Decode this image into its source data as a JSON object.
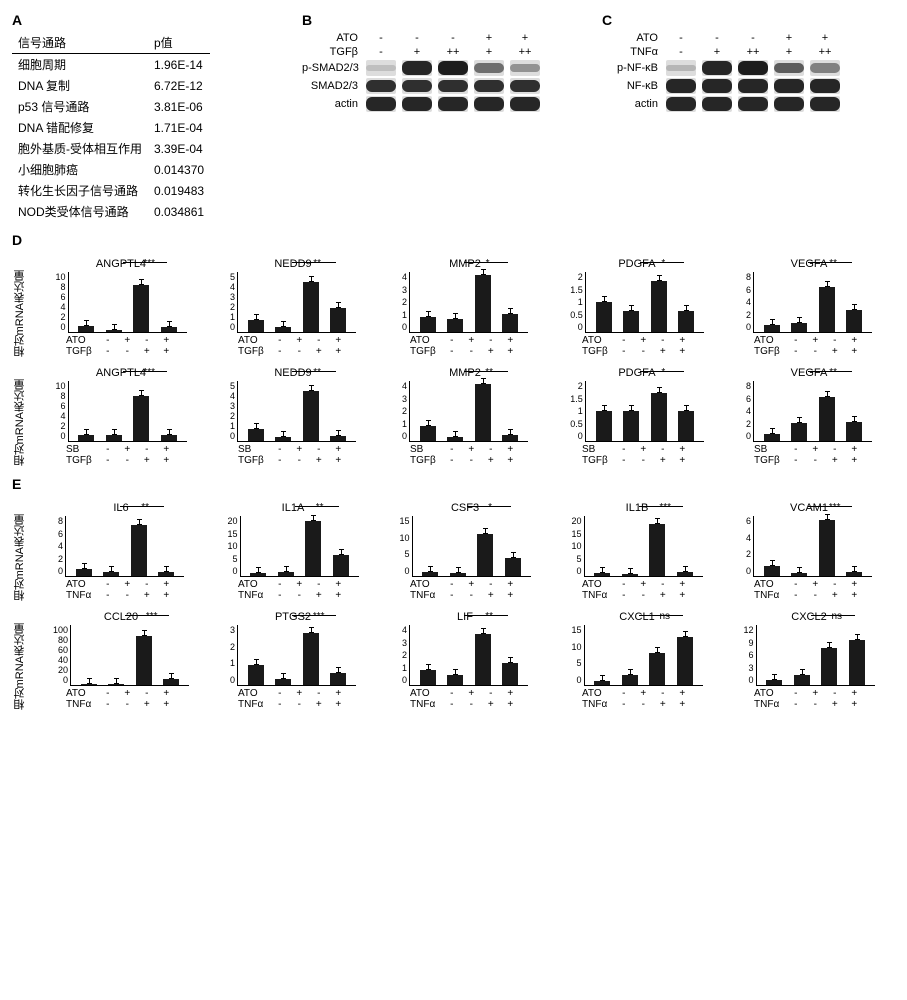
{
  "panels": {
    "A": "A",
    "B": "B",
    "C": "C",
    "D": "D",
    "E": "E"
  },
  "tableA": {
    "header": {
      "pathway": "信号通路",
      "pvalue": "p值"
    },
    "rows": [
      {
        "pathway": "细胞周期",
        "p": "1.96E-14"
      },
      {
        "pathway": "DNA 复制",
        "p": "6.72E-12"
      },
      {
        "pathway": "p53 信号通路",
        "p": "3.81E-06"
      },
      {
        "pathway": "DNA 错配修复",
        "p": "1.71E-04"
      },
      {
        "pathway": "胞外基质-受体相互作用",
        "p": "3.39E-04"
      },
      {
        "pathway": "小细胞肺癌",
        "p": "0.014370"
      },
      {
        "pathway": "转化生长因子信号通路",
        "p": "0.019483"
      },
      {
        "pathway": "NOD类受体信号通路",
        "p": "0.034861"
      }
    ]
  },
  "blotB": {
    "treatments": [
      {
        "label": "ATO",
        "vals": [
          "-",
          "-",
          "-",
          "+",
          "+"
        ]
      },
      {
        "label": "TGFβ",
        "vals": [
          "-",
          "+",
          "++",
          "+",
          "++"
        ]
      }
    ],
    "rows": [
      {
        "label": "p-SMAD2/3",
        "intensity": [
          0.05,
          0.9,
          0.95,
          0.5,
          0.3
        ]
      },
      {
        "label": "SMAD2/3",
        "intensity": [
          0.85,
          0.85,
          0.85,
          0.85,
          0.85
        ]
      },
      {
        "label": "actin",
        "intensity": [
          0.9,
          0.9,
          0.9,
          0.9,
          0.9
        ]
      }
    ]
  },
  "blotC": {
    "treatments": [
      {
        "label": "ATO",
        "vals": [
          "-",
          "-",
          "-",
          "+",
          "+"
        ]
      },
      {
        "label": "TNFα",
        "vals": [
          "-",
          "+",
          "++",
          "+",
          "++"
        ]
      }
    ],
    "rows": [
      {
        "label": "p-NF-κB",
        "intensity": [
          0.1,
          0.9,
          0.95,
          0.6,
          0.4
        ]
      },
      {
        "label": "NF-κB",
        "intensity": [
          0.9,
          0.9,
          0.9,
          0.9,
          0.9
        ]
      },
      {
        "label": "actin",
        "intensity": [
          0.9,
          0.9,
          0.9,
          0.9,
          0.9
        ]
      }
    ]
  },
  "ylabel": "相对mRNA表达量",
  "panelD": {
    "row1": {
      "treat1": "ATO",
      "treat2": "TGFβ",
      "charts": [
        {
          "title": "ANGPTL4",
          "ymax": 10,
          "ticks": [
            0,
            2,
            4,
            6,
            8,
            10
          ],
          "vals": [
            1.0,
            0.3,
            7.8,
            0.8
          ],
          "sig": "***"
        },
        {
          "title": "NEDD9",
          "ymax": 5,
          "ticks": [
            0,
            1,
            2,
            3,
            4,
            5
          ],
          "vals": [
            1.0,
            0.4,
            4.2,
            2.0
          ],
          "sig": "**"
        },
        {
          "title": "MMP2",
          "ymax": 4,
          "ticks": [
            0,
            1,
            2,
            3,
            4
          ],
          "vals": [
            1.0,
            0.9,
            3.8,
            1.2
          ],
          "sig": "*"
        },
        {
          "title": "PDGFA",
          "ymax": 2,
          "ticks": [
            0,
            0.5,
            1.0,
            1.5,
            2.0
          ],
          "vals": [
            1.0,
            0.7,
            1.7,
            0.7
          ],
          "sig": "*"
        },
        {
          "title": "VEGFA",
          "ymax": 8,
          "ticks": [
            0,
            2,
            4,
            6,
            8
          ],
          "vals": [
            1.0,
            1.2,
            6.0,
            2.9
          ],
          "sig": "**"
        }
      ]
    },
    "row2": {
      "treat1": "SB",
      "treat2": "TGFβ",
      "charts": [
        {
          "title": "ANGPTL4",
          "ymax": 10,
          "ticks": [
            0,
            2,
            4,
            6,
            8,
            10
          ],
          "vals": [
            1.0,
            1.0,
            7.5,
            1.0
          ],
          "sig": "***"
        },
        {
          "title": "NEDD9",
          "ymax": 5,
          "ticks": [
            0,
            1,
            2,
            3,
            4,
            5
          ],
          "vals": [
            1.0,
            0.3,
            4.2,
            0.4
          ],
          "sig": "**"
        },
        {
          "title": "MMP2",
          "ymax": 4,
          "ticks": [
            0,
            1,
            2,
            3,
            4
          ],
          "vals": [
            1.0,
            0.3,
            3.8,
            0.4
          ],
          "sig": "**"
        },
        {
          "title": "PDGFA",
          "ymax": 2,
          "ticks": [
            0,
            0.5,
            1.0,
            1.5,
            2.0
          ],
          "vals": [
            1.0,
            1.0,
            1.6,
            1.0
          ],
          "sig": "*"
        },
        {
          "title": "VEGFA",
          "ymax": 8,
          "ticks": [
            0,
            2,
            4,
            6,
            8
          ],
          "vals": [
            1.0,
            2.4,
            5.9,
            2.5
          ],
          "sig": "**"
        }
      ]
    }
  },
  "panelE": {
    "treat1": "ATO",
    "treat2": "TNFα",
    "row1": [
      {
        "title": "IL6",
        "ymax": 8,
        "ticks": [
          0,
          2,
          4,
          6,
          8
        ],
        "vals": [
          1.0,
          0.5,
          6.8,
          0.6
        ],
        "sig": "**"
      },
      {
        "title": "IL1A",
        "ymax": 20,
        "ticks": [
          0,
          5,
          10,
          15,
          20
        ],
        "vals": [
          1.0,
          1.2,
          18.5,
          7.0
        ],
        "sig": "**"
      },
      {
        "title": "CSF3",
        "ymax": 15,
        "ticks": [
          0,
          5,
          10,
          15
        ],
        "vals": [
          1.0,
          0.7,
          10.5,
          4.5
        ],
        "sig": "*"
      },
      {
        "title": "IL1B",
        "ymax": 20,
        "ticks": [
          0,
          5,
          10,
          15,
          20
        ],
        "vals": [
          1.0,
          0.7,
          17.5,
          1.2
        ],
        "sig": "***"
      },
      {
        "title": "VCAM1",
        "ymax": 6,
        "ticks": [
          0,
          2,
          4,
          6
        ],
        "vals": [
          1.0,
          0.3,
          5.6,
          0.4
        ],
        "sig": "***"
      }
    ],
    "row2": [
      {
        "title": "CCL20",
        "ymax": 100,
        "ticks": [
          0,
          20,
          40,
          60,
          80,
          100
        ],
        "vals": [
          1,
          1,
          82,
          10
        ],
        "sig": "***"
      },
      {
        "title": "PTGS2",
        "ymax": 3,
        "ticks": [
          0,
          1,
          2,
          3
        ],
        "vals": [
          1.0,
          0.3,
          2.6,
          0.6
        ],
        "sig": "***"
      },
      {
        "title": "LIF",
        "ymax": 4,
        "ticks": [
          0,
          1,
          2,
          3,
          4
        ],
        "vals": [
          1.0,
          0.7,
          3.4,
          1.5
        ],
        "sig": "**"
      },
      {
        "title": "CXCL1",
        "ymax": 15,
        "ticks": [
          0,
          5,
          10,
          15
        ],
        "vals": [
          1.0,
          2.5,
          8.0,
          12.0
        ],
        "sig": "ns"
      },
      {
        "title": "CXCL2",
        "ymax": 12,
        "ticks": [
          0,
          3,
          6,
          9,
          12
        ],
        "vals": [
          1.0,
          2.0,
          7.5,
          9.0
        ],
        "sig": "ns"
      }
    ]
  },
  "xcond": {
    "c1": "-",
    "c2": "+",
    "c3": "-",
    "c4": "+",
    "t1": "-",
    "t2": "-",
    "t3": "+",
    "t4": "+"
  },
  "style": {
    "bar_color": "#1a1a1a",
    "axis_color": "#000000",
    "background": "#ffffff",
    "font": "Arial",
    "blot_band": "#2a2a2a",
    "blot_strip": "#dddddd"
  }
}
